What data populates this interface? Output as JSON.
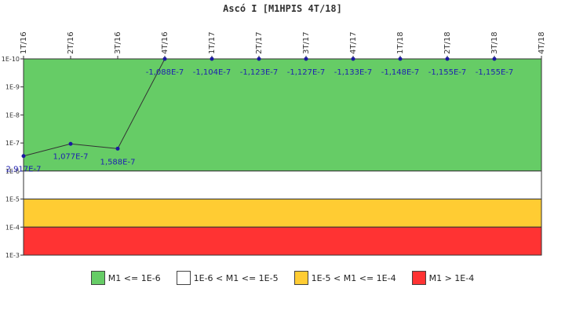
{
  "chart_data": {
    "type": "line",
    "title": "Ascó I [M1HPIS 4T/18]",
    "y_scale": "log",
    "y_axis_inverted": true,
    "y_ticks": [
      "1E-10",
      "1E-9",
      "1E-8",
      "1E-7",
      "1E-6",
      "1E-5",
      "1E-4",
      "1E-3"
    ],
    "x_ticks": [
      "1T/16",
      "2T/16",
      "3T/16",
      "4T/16",
      "1T/17",
      "2T/17",
      "3T/17",
      "4T/17",
      "1T/18",
      "2T/18",
      "3T/18",
      "4T/18"
    ],
    "series": [
      {
        "points": [
          {
            "x": "1T/16",
            "y": 2.917e-07,
            "label": "2,917E-7"
          },
          {
            "x": "2T/16",
            "y": 1.077e-07,
            "label": "1,077E-7"
          },
          {
            "x": "3T/16",
            "y": 1.588e-07,
            "label": "1,588E-7"
          },
          {
            "x": "4T/16",
            "y": 1e-10,
            "label": "-1,088E-7"
          },
          {
            "x": "1T/17",
            "y": 1e-10,
            "label": "-1,104E-7"
          },
          {
            "x": "2T/17",
            "y": 1e-10,
            "label": "-1,123E-7"
          },
          {
            "x": "3T/17",
            "y": 1e-10,
            "label": "-1,127E-7"
          },
          {
            "x": "4T/17",
            "y": 1e-10,
            "label": "-1,133E-7"
          },
          {
            "x": "1T/18",
            "y": 1e-10,
            "label": "-1,148E-7"
          },
          {
            "x": "2T/18",
            "y": 1e-10,
            "label": "-1,155E-7"
          },
          {
            "x": "3T/18",
            "y": 1e-10,
            "label": "-1,155E-7"
          }
        ]
      }
    ],
    "bands": [
      {
        "from": 1e-10,
        "to": 1e-06,
        "color": "#66cc66",
        "legend": "M1 <= 1E-6"
      },
      {
        "from": 1e-06,
        "to": 1e-05,
        "color": "#ffffff",
        "legend": "1E-6 < M1 <= 1E-5"
      },
      {
        "from": 1e-05,
        "to": 0.0001,
        "color": "#ffcc33",
        "legend": "1E-5 < M1 <= 1E-4"
      },
      {
        "from": 0.0001,
        "to": 0.001,
        "color": "#ff3333",
        "legend": "M1 > 1E-4"
      }
    ],
    "line_color": "#333333",
    "marker_color": "#1a1aa0",
    "legend_position": "bottom-center"
  }
}
